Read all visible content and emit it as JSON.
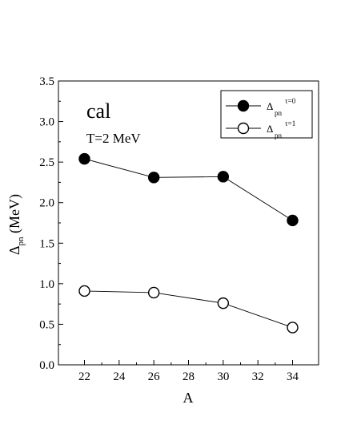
{
  "chart_data": {
    "type": "line",
    "xlabel": "A",
    "ylabel": {
      "main": "Δ",
      "sub": "pn",
      "rest": " (MeV)"
    },
    "xlim": [
      20.5,
      35.5
    ],
    "ylim": [
      0.0,
      3.5
    ],
    "xticks": [
      22,
      24,
      26,
      28,
      30,
      32,
      34
    ],
    "yticks": [
      0.0,
      0.5,
      1.0,
      1.5,
      2.0,
      2.5,
      3.0,
      3.5
    ],
    "ytick_labels": [
      "0.0",
      "0.5",
      "1.0",
      "1.5",
      "2.0",
      "2.5",
      "3.0",
      "3.5"
    ],
    "grid": false,
    "legend_position": "top-right",
    "annotations": [
      "cal",
      "T=2 MeV"
    ],
    "series": [
      {
        "name": "Δpn τ=0",
        "legend_main": "Δ",
        "legend_sub": "pn",
        "legend_sup": "τ=0",
        "marker": "filled-circle",
        "x": [
          22,
          26,
          30,
          34
        ],
        "values": [
          2.54,
          2.31,
          2.32,
          1.78
        ]
      },
      {
        "name": "Δpn τ=1",
        "legend_main": "Δ",
        "legend_sub": "pn",
        "legend_sup": "τ=1",
        "marker": "open-circle",
        "x": [
          22,
          26,
          30,
          34
        ],
        "values": [
          0.91,
          0.89,
          0.76,
          0.46
        ]
      }
    ]
  }
}
